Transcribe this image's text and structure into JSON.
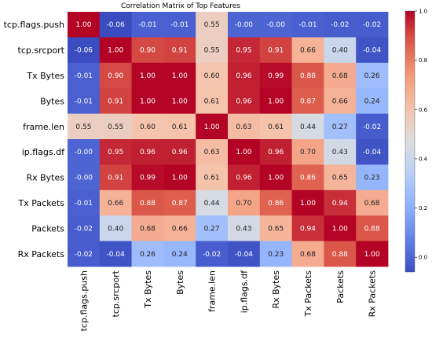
{
  "chart_data": {
    "type": "heatmap",
    "title": "Correlation Matrix of Top Features",
    "xlabel": "",
    "ylabel": "",
    "labels": [
      "tcp.flags.push",
      "tcp.srcport",
      "Tx Bytes",
      "Bytes",
      "frame.len",
      "ip.flags.df",
      "Rx Bytes",
      "Tx Packets",
      "Packets",
      "Rx Packets"
    ],
    "value_labels": [
      [
        "1.00",
        "-0.06",
        "-0.01",
        "-0.01",
        "0.55",
        "-0.00",
        "-0.00",
        "-0.01",
        "-0.02",
        "-0.02"
      ],
      [
        "-0.06",
        "1.00",
        "0.90",
        "0.91",
        "0.55",
        "0.95",
        "0.91",
        "0.66",
        "0.40",
        "-0.04"
      ],
      [
        "-0.01",
        "0.90",
        "1.00",
        "1.00",
        "0.60",
        "0.96",
        "0.99",
        "0.88",
        "0.68",
        "0.26"
      ],
      [
        "-0.01",
        "0.91",
        "1.00",
        "1.00",
        "0.61",
        "0.96",
        "1.00",
        "0.87",
        "0.66",
        "0.24"
      ],
      [
        "0.55",
        "0.55",
        "0.60",
        "0.61",
        "1.00",
        "0.63",
        "0.61",
        "0.44",
        "0.27",
        "-0.02"
      ],
      [
        "-0.00",
        "0.95",
        "0.96",
        "0.96",
        "0.63",
        "1.00",
        "0.96",
        "0.70",
        "0.43",
        "-0.04"
      ],
      [
        "-0.00",
        "0.91",
        "0.99",
        "1.00",
        "0.61",
        "0.96",
        "1.00",
        "0.86",
        "0.65",
        "0.23"
      ],
      [
        "-0.01",
        "0.66",
        "0.88",
        "0.87",
        "0.44",
        "0.70",
        "0.86",
        "1.00",
        "0.94",
        "0.68"
      ],
      [
        "-0.02",
        "0.40",
        "0.68",
        "0.66",
        "0.27",
        "0.43",
        "0.65",
        "0.94",
        "1.00",
        "0.88"
      ],
      [
        "-0.02",
        "-0.04",
        "0.26",
        "0.24",
        "-0.02",
        "-0.04",
        "0.23",
        "0.68",
        "0.88",
        "1.00"
      ]
    ],
    "colorbar": {
      "colormap": "coolwarm",
      "range": [
        -0.06,
        1.0
      ],
      "ticks": [
        "0.0",
        "0.2",
        "0.4",
        "0.6",
        "0.8",
        "1.0"
      ]
    }
  }
}
